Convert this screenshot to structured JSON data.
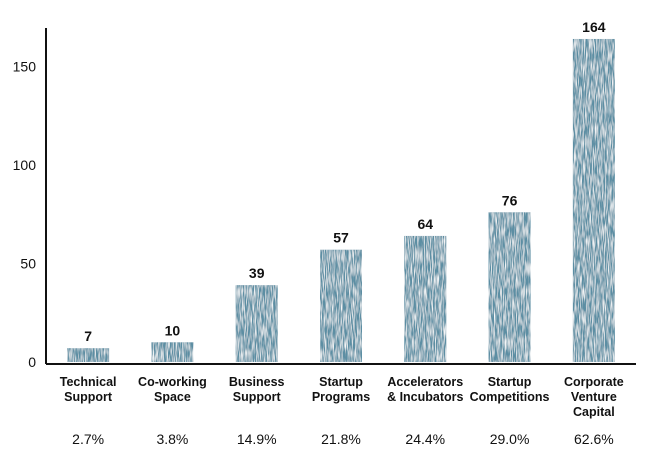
{
  "chart_data": {
    "type": "bar",
    "title": "",
    "xlabel": "",
    "ylabel": "",
    "ylim": [
      0,
      165
    ],
    "yticks": [
      0,
      50,
      100,
      150
    ],
    "grid": false,
    "color": "#5b8ea3",
    "categories": [
      [
        "Technical",
        "Support"
      ],
      [
        "Co-working",
        "Space"
      ],
      [
        "Business",
        "Support"
      ],
      [
        "Startup",
        "Programs"
      ],
      [
        "Accelerators",
        "& Incubators"
      ],
      [
        "Startup",
        "Competitions"
      ],
      [
        "Corporate",
        "Venture",
        "Capital"
      ]
    ],
    "values": [
      7,
      10,
      39,
      57,
      64,
      76,
      164
    ],
    "percentages": [
      "2.7%",
      "3.8%",
      "14.9%",
      "21.8%",
      "24.4%",
      "29.0%",
      "62.6%"
    ]
  }
}
